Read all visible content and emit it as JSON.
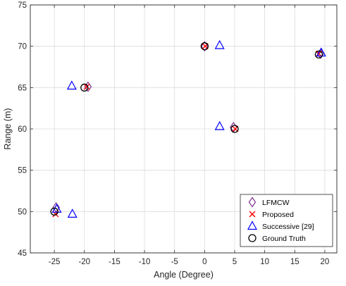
{
  "chart_data": {
    "type": "scatter",
    "title": "",
    "xlabel": "Angle (Degree)",
    "ylabel": "Range (m)",
    "xlim": [
      -29,
      22
    ],
    "ylim": [
      45,
      75
    ],
    "xticks": [
      -25,
      -20,
      -15,
      -10,
      -5,
      0,
      5,
      10,
      15,
      20
    ],
    "yticks": [
      45,
      50,
      55,
      60,
      65,
      70,
      75
    ],
    "grid": true,
    "legend_position": "bottom-right",
    "series": [
      {
        "name": "LFMCW",
        "marker": "diamond",
        "color": "#7e2f8e",
        "points": [
          [
            -24.7,
            50.5
          ],
          [
            -19.4,
            65.1
          ],
          [
            0.0,
            70.0
          ],
          [
            4.8,
            60.2
          ],
          [
            19.3,
            69.1
          ]
        ]
      },
      {
        "name": "Proposed",
        "marker": "x",
        "color": "#ff0000",
        "points": [
          [
            -24.8,
            49.7
          ],
          [
            -19.6,
            65.1
          ],
          [
            0.1,
            70.0
          ],
          [
            5.1,
            60.0
          ],
          [
            19.0,
            69.1
          ]
        ]
      },
      {
        "name": "Successive [29]",
        "marker": "triangle",
        "color": "#0000ff",
        "points": [
          [
            -24.6,
            50.3
          ],
          [
            -22.0,
            49.7
          ],
          [
            -22.1,
            65.2
          ],
          [
            2.5,
            70.1
          ],
          [
            2.5,
            60.3
          ],
          [
            19.4,
            69.2
          ]
        ]
      },
      {
        "name": "Ground Truth",
        "marker": "circle",
        "color": "#000000",
        "points": [
          [
            -25.0,
            50.0
          ],
          [
            -20.0,
            65.0
          ],
          [
            0.0,
            70.0
          ],
          [
            5.0,
            60.0
          ],
          [
            19.0,
            69.0
          ]
        ]
      }
    ]
  }
}
